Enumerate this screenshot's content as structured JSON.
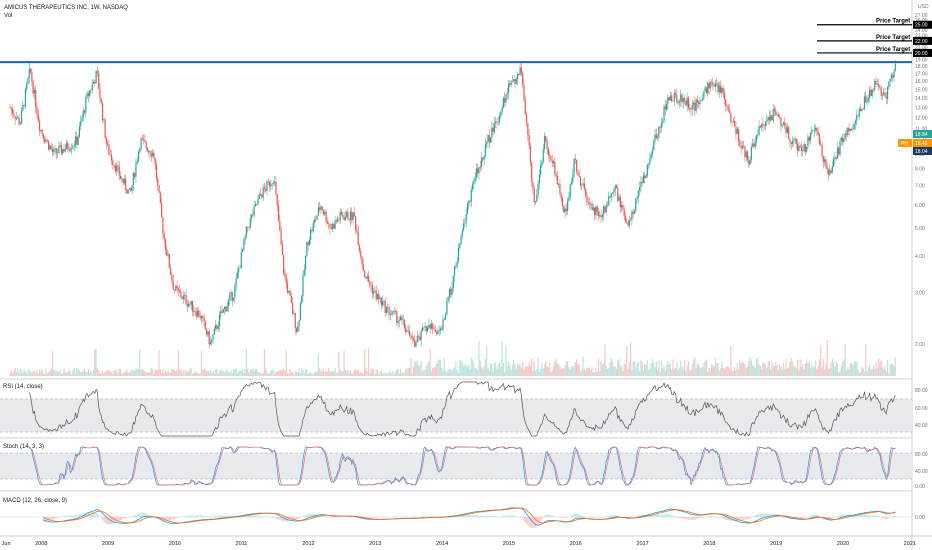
{
  "header": {
    "symbol_line": "AMICUS THERAPEUTICS INC, 1W, NASDAQ",
    "vol_label": "Vol"
  },
  "currency": "USD",
  "colors": {
    "up": "#26a69a",
    "down": "#ef5350",
    "up_light": "#b9e6e0",
    "down_light": "#f7c6c5",
    "resistance": "#1565c0",
    "rsi_line": "#555555",
    "stoch_k": "#2196f3",
    "stoch_d": "#ef6c6c",
    "macd_line": "#2196f3",
    "signal_line": "#ff6d00",
    "band_fill": "#e9eaee"
  },
  "price_axis": {
    "ticks": [
      "27.00",
      "26.00",
      "25.00",
      "24.00",
      "23.00",
      "22.00",
      "21.00",
      "20.00",
      "19.00",
      "18.00",
      "17.00",
      "16.00",
      "15.00",
      "14.00",
      "13.00",
      "12.00",
      "11.00",
      "10.00",
      "9.00",
      "8.00",
      "7.00",
      "6.00",
      "5.00",
      "4.00",
      "3.00",
      "2.00"
    ],
    "scale": "log",
    "range": [
      1.6,
      29
    ]
  },
  "annotations": {
    "targets": [
      {
        "label": "Price Target",
        "value": 25.0,
        "value_label": "25.00"
      },
      {
        "label": "Price Target",
        "value": 22.0,
        "value_label": "22.00"
      },
      {
        "label": "Price Target",
        "value": 20.0,
        "value_label": "20.00"
      }
    ],
    "resistance_value": 18.6,
    "current_marker": "18.84",
    "ph_label": "PH",
    "ph_value": "18.46",
    "last_value": "18.04"
  },
  "time_axis": {
    "labels": [
      "Jun",
      "2008",
      "2009",
      "2010",
      "2011",
      "2012",
      "2013",
      "2014",
      "2015",
      "2016",
      "2017",
      "2018",
      "2019",
      "2020",
      "2021"
    ],
    "start": 2007.4,
    "end": 2021.05
  },
  "price_series": {
    "x": [
      2007.55,
      2007.7,
      2007.85,
      2008.0,
      2008.2,
      2008.4,
      2008.55,
      2008.7,
      2008.85,
      2009.0,
      2009.2,
      2009.35,
      2009.5,
      2009.7,
      2009.85,
      2010.0,
      2010.2,
      2010.4,
      2010.55,
      2010.7,
      2010.9,
      2011.1,
      2011.3,
      2011.5,
      2011.65,
      2011.85,
      2012.0,
      2012.2,
      2012.35,
      2012.5,
      2012.7,
      2012.85,
      2013.0,
      2013.2,
      2013.4,
      2013.6,
      2013.8,
      2014.0,
      2014.2,
      2014.4,
      2014.55,
      2014.7,
      2014.85,
      2015.0,
      2015.2,
      2015.4,
      2015.55,
      2015.7,
      2015.85,
      2016.0,
      2016.2,
      2016.4,
      2016.6,
      2016.8,
      2017.0,
      2017.2,
      2017.4,
      2017.6,
      2017.8,
      2018.0,
      2018.2,
      2018.4,
      2018.6,
      2018.8,
      2019.0,
      2019.2,
      2019.4,
      2019.6,
      2019.8,
      2020.0,
      2020.2,
      2020.35,
      2020.5,
      2020.65,
      2020.8
    ],
    "close": [
      13.0,
      11.5,
      17.5,
      11.0,
      9.0,
      9.5,
      10.0,
      14.0,
      17.0,
      9.5,
      7.5,
      6.5,
      10.0,
      9.0,
      4.7,
      3.1,
      2.8,
      2.5,
      2.0,
      2.5,
      3.0,
      5.0,
      6.5,
      7.5,
      3.5,
      2.2,
      4.5,
      6.0,
      5.0,
      5.5,
      5.5,
      3.5,
      3.0,
      2.6,
      2.4,
      2.0,
      2.3,
      2.2,
      3.5,
      6.0,
      8.0,
      10.0,
      12.0,
      15.0,
      17.5,
      6.0,
      10.0,
      8.0,
      5.5,
      8.5,
      6.0,
      5.5,
      7.0,
      5.0,
      7.0,
      10.0,
      14.0,
      14.0,
      13.0,
      15.5,
      15.0,
      11.0,
      8.5,
      11.5,
      12.5,
      10.5,
      9.0,
      11.0,
      7.5,
      10.0,
      11.5,
      14.0,
      15.5,
      14.0,
      18.5
    ]
  },
  "panes": {
    "rsi": {
      "label": "RSI (14, close)",
      "ticks": [
        "80.00",
        "60.00",
        "40.00"
      ],
      "band": [
        30,
        70
      ]
    },
    "stoch": {
      "label": "Stoch (14, 3, 3)",
      "ticks": [
        "80.00",
        "40.00",
        "0.00"
      ],
      "band": [
        20,
        80
      ]
    },
    "macd": {
      "label": "MACD (12, 26, close, 9)",
      "ticks": [
        "0.00"
      ]
    }
  }
}
